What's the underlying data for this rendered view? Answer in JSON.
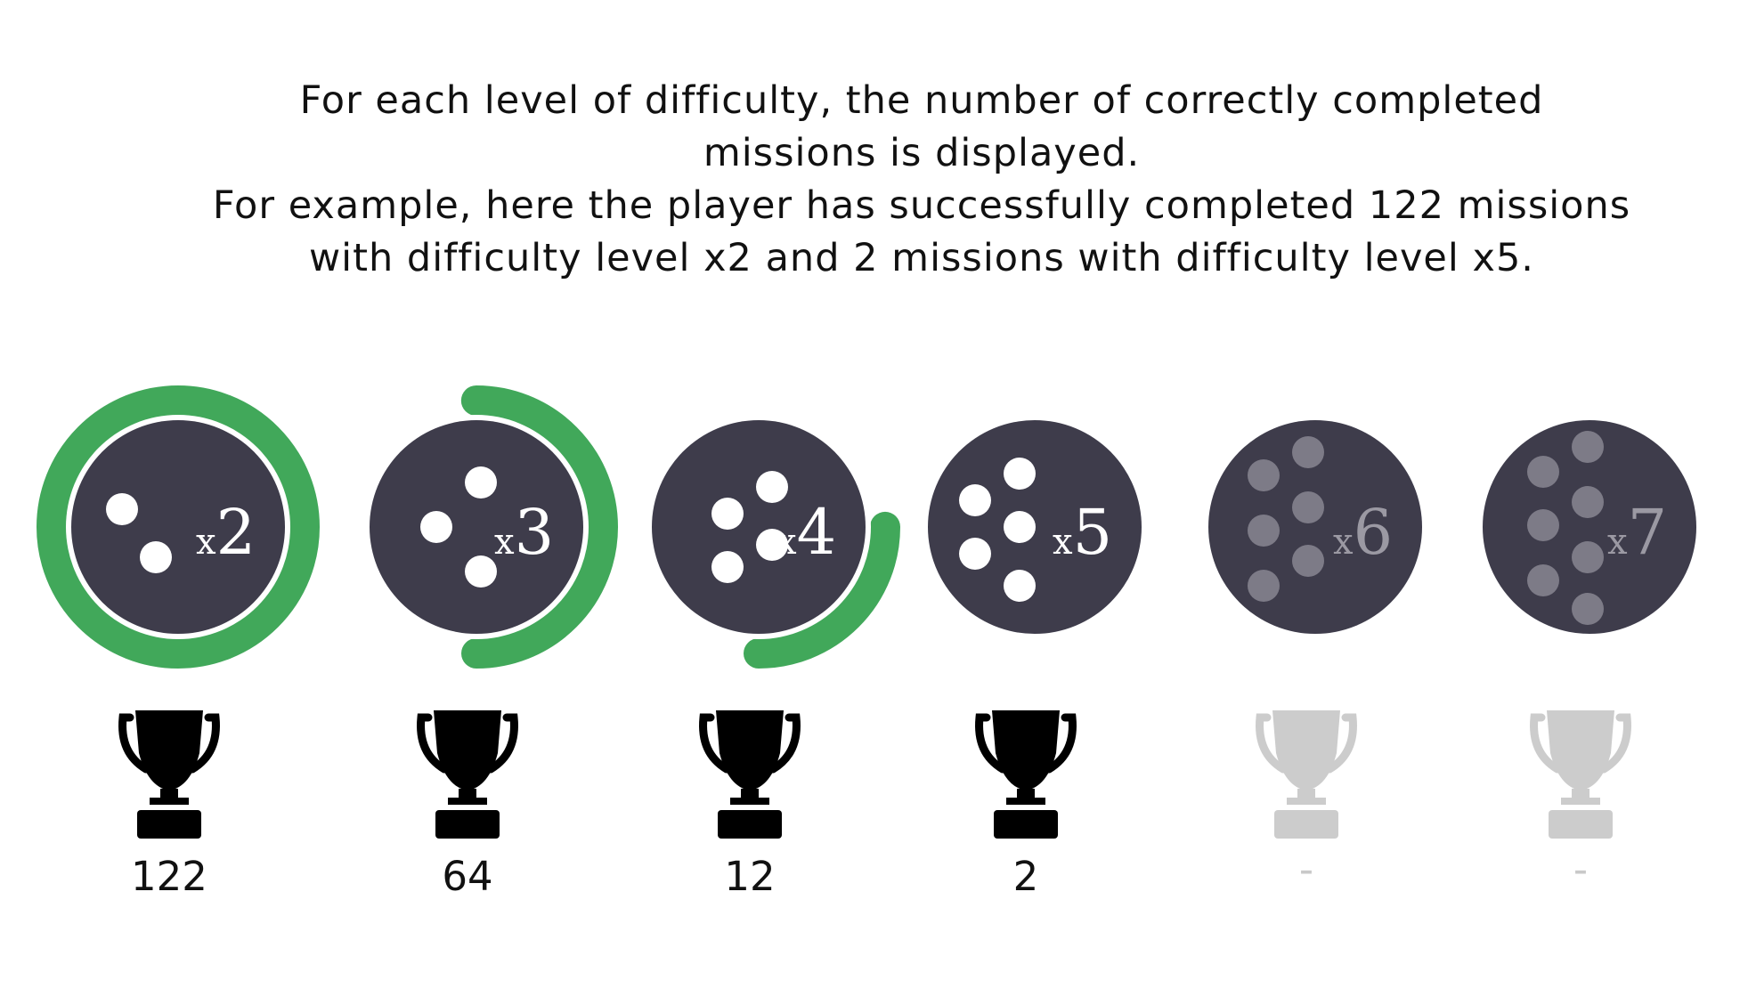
{
  "caption": {
    "line1": "For each level of difficulty, the number of correctly completed",
    "line2": "missions is displayed.",
    "line3": "For example, here the player has successfully completed 122 missions",
    "line4": "with difficulty level x2 and 2 missions with difficulty level x5."
  },
  "colors": {
    "badge": "#3e3c4b",
    "progress": "#41a85a",
    "pip": "#ffffff",
    "pip_locked": "#7d7b87",
    "trophy": "#000000",
    "trophy_locked": "#cccccc",
    "label_locked": "#9b99a3"
  },
  "levels": [
    {
      "multiplier": "x",
      "multiplier_value": "2",
      "pips": 2,
      "progress": 1.0,
      "count": "122",
      "unlocked": true
    },
    {
      "multiplier": "x",
      "multiplier_value": "3",
      "pips": 3,
      "progress": 0.5,
      "count": "64",
      "unlocked": true
    },
    {
      "multiplier": "x",
      "multiplier_value": "4",
      "pips": 4,
      "progress": 0.25,
      "count": "12",
      "unlocked": true
    },
    {
      "multiplier": "x",
      "multiplier_value": "5",
      "pips": 5,
      "progress": 0,
      "count": "2",
      "unlocked": true
    },
    {
      "multiplier": "x",
      "multiplier_value": "6",
      "pips": 6,
      "progress": 0,
      "count": "-",
      "unlocked": false
    },
    {
      "multiplier": "x",
      "multiplier_value": "7",
      "pips": 7,
      "progress": 0,
      "count": "-",
      "unlocked": false
    }
  ]
}
